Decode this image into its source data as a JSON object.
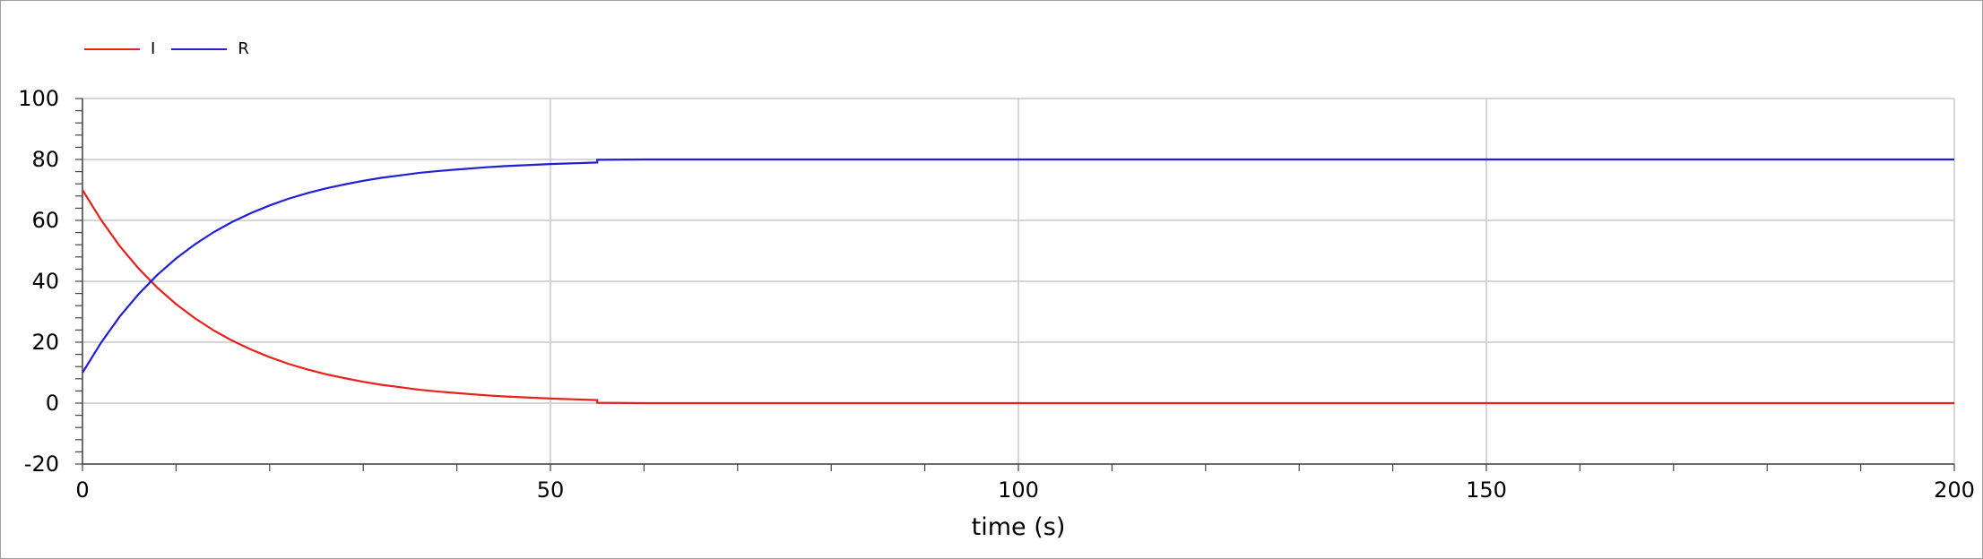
{
  "chart_data": {
    "type": "line",
    "xlabel": "time (s)",
    "ylabel": "",
    "xlim": [
      0,
      200
    ],
    "ylim": [
      -20,
      100
    ],
    "x_ticks": [
      0,
      50,
      100,
      150,
      200
    ],
    "y_ticks": [
      -20,
      0,
      20,
      40,
      60,
      80,
      100
    ],
    "grid": true,
    "legend_position": "top-left",
    "series": [
      {
        "name": "I",
        "color": "#e8201a",
        "points": [
          [
            0,
            70
          ],
          [
            2,
            60.1
          ],
          [
            4,
            51.5
          ],
          [
            6,
            44.2
          ],
          [
            8,
            37.9
          ],
          [
            10,
            32.5
          ],
          [
            12,
            27.9
          ],
          [
            14,
            23.9
          ],
          [
            16,
            20.5
          ],
          [
            18,
            17.6
          ],
          [
            20,
            15.1
          ],
          [
            22,
            12.9
          ],
          [
            24,
            11.1
          ],
          [
            26,
            9.5
          ],
          [
            28,
            8.2
          ],
          [
            30,
            7.0
          ],
          [
            32,
            6.0
          ],
          [
            34,
            5.2
          ],
          [
            36,
            4.4
          ],
          [
            38,
            3.8
          ],
          [
            40,
            3.3
          ],
          [
            43,
            2.6
          ],
          [
            45,
            2.2
          ],
          [
            50,
            1.5
          ],
          [
            55,
            1.0
          ],
          [
            55,
            0.1
          ],
          [
            60,
            0
          ],
          [
            200,
            0
          ]
        ]
      },
      {
        "name": "R",
        "color": "#1f1fd6",
        "points": [
          [
            0,
            10
          ],
          [
            2,
            19.9
          ],
          [
            4,
            28.5
          ],
          [
            6,
            35.8
          ],
          [
            8,
            42.1
          ],
          [
            10,
            47.5
          ],
          [
            12,
            52.1
          ],
          [
            14,
            56.1
          ],
          [
            16,
            59.5
          ],
          [
            18,
            62.4
          ],
          [
            20,
            64.9
          ],
          [
            22,
            67.1
          ],
          [
            24,
            68.9
          ],
          [
            26,
            70.5
          ],
          [
            28,
            71.8
          ],
          [
            30,
            73.0
          ],
          [
            32,
            74.0
          ],
          [
            34,
            74.8
          ],
          [
            36,
            75.6
          ],
          [
            38,
            76.2
          ],
          [
            40,
            76.7
          ],
          [
            43,
            77.4
          ],
          [
            45,
            77.8
          ],
          [
            50,
            78.5
          ],
          [
            55,
            79.0
          ],
          [
            55,
            79.9
          ],
          [
            60,
            80
          ],
          [
            200,
            80
          ]
        ]
      }
    ]
  }
}
